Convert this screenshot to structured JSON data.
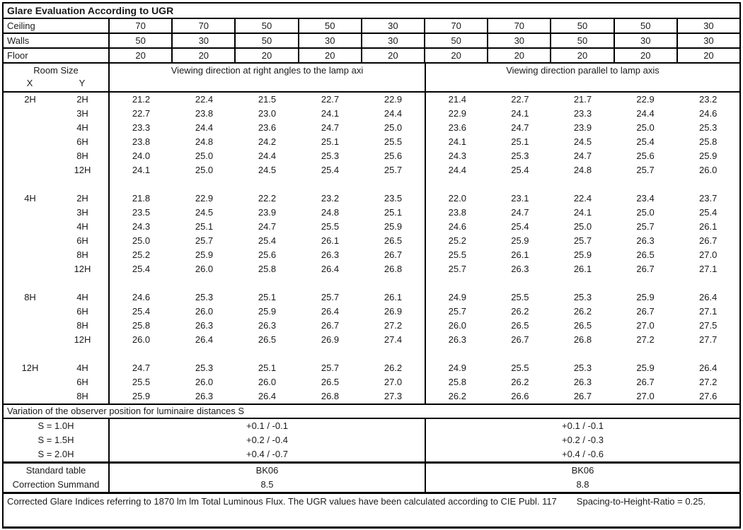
{
  "title": "Glare Evaluation According to UGR",
  "colors": {
    "border": "#000000",
    "text": "#1a1a1a",
    "background": "#ffffff"
  },
  "surface_rows": [
    {
      "label": "Ceiling",
      "values": [
        "70",
        "70",
        "50",
        "50",
        "30",
        "70",
        "70",
        "50",
        "50",
        "30"
      ]
    },
    {
      "label": "Walls",
      "values": [
        "50",
        "30",
        "50",
        "30",
        "30",
        "50",
        "30",
        "50",
        "30",
        "30"
      ]
    },
    {
      "label": "Floor",
      "values": [
        "20",
        "20",
        "20",
        "20",
        "20",
        "20",
        "20",
        "20",
        "20",
        "20"
      ]
    }
  ],
  "header": {
    "room_size_label": "Room Size",
    "x_label": "X",
    "y_label": "Y",
    "left_direction": "Viewing direction at right angles to the lamp axi",
    "right_direction": "Viewing direction parallel to lamp axis"
  },
  "ugr_blocks": [
    {
      "x": "2H",
      "rows": [
        {
          "y": "2H",
          "values": [
            "21.2",
            "22.4",
            "21.5",
            "22.7",
            "22.9",
            "21.4",
            "22.7",
            "21.7",
            "22.9",
            "23.2"
          ]
        },
        {
          "y": "3H",
          "values": [
            "22.7",
            "23.8",
            "23.0",
            "24.1",
            "24.4",
            "22.9",
            "24.1",
            "23.3",
            "24.4",
            "24.6"
          ]
        },
        {
          "y": "4H",
          "values": [
            "23.3",
            "24.4",
            "23.6",
            "24.7",
            "25.0",
            "23.6",
            "24.7",
            "23.9",
            "25.0",
            "25.3"
          ]
        },
        {
          "y": "6H",
          "values": [
            "23.8",
            "24.8",
            "24.2",
            "25.1",
            "25.5",
            "24.1",
            "25.1",
            "24.5",
            "25.4",
            "25.8"
          ]
        },
        {
          "y": "8H",
          "values": [
            "24.0",
            "25.0",
            "24.4",
            "25.3",
            "25.6",
            "24.3",
            "25.3",
            "24.7",
            "25.6",
            "25.9"
          ]
        },
        {
          "y": "12H",
          "values": [
            "24.1",
            "25.0",
            "24.5",
            "25.4",
            "25.7",
            "24.4",
            "25.4",
            "24.8",
            "25.7",
            "26.0"
          ]
        }
      ]
    },
    {
      "x": "4H",
      "rows": [
        {
          "y": "2H",
          "values": [
            "21.8",
            "22.9",
            "22.2",
            "23.2",
            "23.5",
            "22.0",
            "23.1",
            "22.4",
            "23.4",
            "23.7"
          ]
        },
        {
          "y": "3H",
          "values": [
            "23.5",
            "24.5",
            "23.9",
            "24.8",
            "25.1",
            "23.8",
            "24.7",
            "24.1",
            "25.0",
            "25.4"
          ]
        },
        {
          "y": "4H",
          "values": [
            "24.3",
            "25.1",
            "24.7",
            "25.5",
            "25.9",
            "24.6",
            "25.4",
            "25.0",
            "25.7",
            "26.1"
          ]
        },
        {
          "y": "6H",
          "values": [
            "25.0",
            "25.7",
            "25.4",
            "26.1",
            "26.5",
            "25.2",
            "25.9",
            "25.7",
            "26.3",
            "26.7"
          ]
        },
        {
          "y": "8H",
          "values": [
            "25.2",
            "25.9",
            "25.6",
            "26.3",
            "26.7",
            "25.5",
            "26.1",
            "25.9",
            "26.5",
            "27.0"
          ]
        },
        {
          "y": "12H",
          "values": [
            "25.4",
            "26.0",
            "25.8",
            "26.4",
            "26.8",
            "25.7",
            "26.3",
            "26.1",
            "26.7",
            "27.1"
          ]
        }
      ]
    },
    {
      "x": "8H",
      "rows": [
        {
          "y": "4H",
          "values": [
            "24.6",
            "25.3",
            "25.1",
            "25.7",
            "26.1",
            "24.9",
            "25.5",
            "25.3",
            "25.9",
            "26.4"
          ]
        },
        {
          "y": "6H",
          "values": [
            "25.4",
            "26.0",
            "25.9",
            "26.4",
            "26.9",
            "25.7",
            "26.2",
            "26.2",
            "26.7",
            "27.1"
          ]
        },
        {
          "y": "8H",
          "values": [
            "25.8",
            "26.3",
            "26.3",
            "26.7",
            "27.2",
            "26.0",
            "26.5",
            "26.5",
            "27.0",
            "27.5"
          ]
        },
        {
          "y": "12H",
          "values": [
            "26.0",
            "26.4",
            "26.5",
            "26.9",
            "27.4",
            "26.3",
            "26.7",
            "26.8",
            "27.2",
            "27.7"
          ]
        }
      ]
    },
    {
      "x": "12H",
      "rows": [
        {
          "y": "4H",
          "values": [
            "24.7",
            "25.3",
            "25.1",
            "25.7",
            "26.2",
            "24.9",
            "25.5",
            "25.3",
            "25.9",
            "26.4"
          ]
        },
        {
          "y": "6H",
          "values": [
            "25.5",
            "26.0",
            "26.0",
            "26.5",
            "27.0",
            "25.8",
            "26.2",
            "26.3",
            "26.7",
            "27.2"
          ]
        },
        {
          "y": "8H",
          "values": [
            "25.9",
            "26.3",
            "26.4",
            "26.8",
            "27.3",
            "26.2",
            "26.6",
            "26.7",
            "27.0",
            "27.6"
          ]
        }
      ]
    }
  ],
  "variation": {
    "heading": "Variation of the observer position for luminaire distances S",
    "rows": [
      {
        "label": "S = 1.0H",
        "left": "+0.1 / -0.1",
        "right": "+0.1 / -0.1"
      },
      {
        "label": "S = 1.5H",
        "left": "+0.2 / -0.4",
        "right": "+0.2 / -0.3"
      },
      {
        "label": "S = 2.0H",
        "left": "+0.4 / -0.7",
        "right": "+0.4 / -0.6"
      }
    ]
  },
  "summary": {
    "rows": [
      {
        "label": "Standard table",
        "left": "BK06",
        "right": "BK06"
      },
      {
        "label": "Correction Summand",
        "left": "8.5",
        "right": "8.8"
      }
    ]
  },
  "footer": {
    "text_main": "Corrected Glare Indices referring to 1870 lm lm Total Luminous Flux. The UGR values have been calculated according to CIE Publ. 117",
    "text_ratio": "Spacing-to-Height-Ratio = 0.25."
  }
}
